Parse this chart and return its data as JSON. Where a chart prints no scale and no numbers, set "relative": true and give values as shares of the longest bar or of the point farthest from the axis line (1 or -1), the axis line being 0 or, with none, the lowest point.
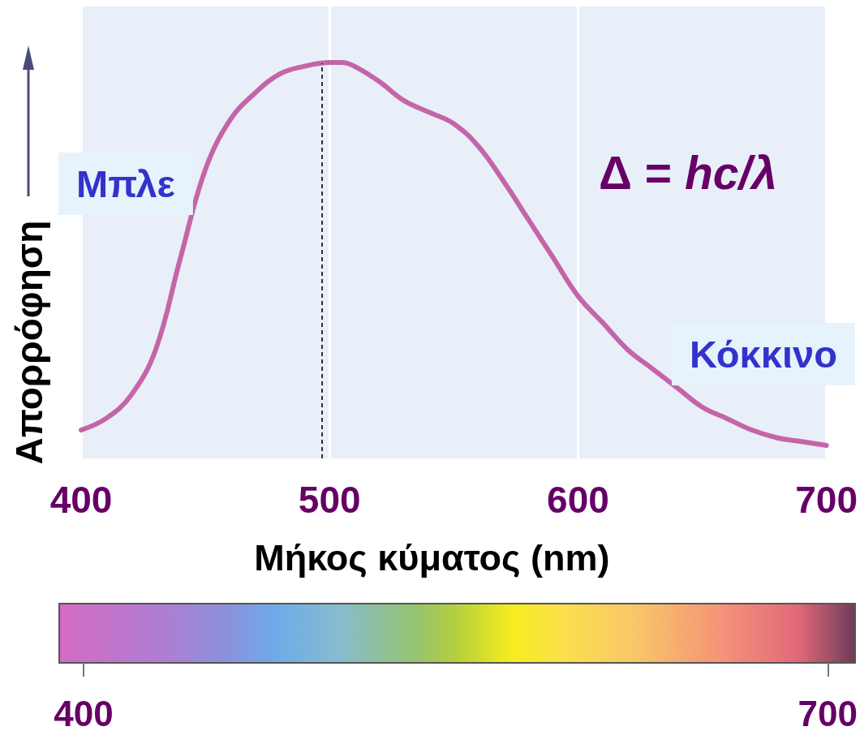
{
  "chart_data": {
    "type": "line",
    "relative": true,
    "ylabel": "Απορρόφηση",
    "xlabel": "Μήκος κύματος (nm)",
    "xlim": [
      400,
      700
    ],
    "xticks": [
      400,
      500,
      600,
      700
    ],
    "x2lim": [
      400,
      700
    ],
    "x2ticks": [
      400,
      700
    ],
    "grid": "x",
    "marker": "none",
    "line_style": "solid",
    "color": "#c465a8",
    "annotations": [
      "Μπλε",
      "Δ = hc/λ",
      "Κόκκινο"
    ],
    "ref_lines": [
      {
        "axis": "x",
        "value": 497,
        "color": "#000000",
        "line_style": "dashed"
      }
    ],
    "x": [
      400,
      410,
      420,
      430,
      440,
      450,
      460,
      470,
      480,
      490,
      500,
      505,
      510,
      520,
      530,
      540,
      550,
      560,
      570,
      580,
      590,
      600,
      610,
      620,
      630,
      640,
      650,
      660,
      670,
      680,
      690,
      700
    ],
    "values": [
      0.04,
      0.07,
      0.13,
      0.25,
      0.49,
      0.72,
      0.85,
      0.92,
      0.97,
      0.99,
      1.0,
      1.0,
      0.99,
      0.95,
      0.9,
      0.87,
      0.84,
      0.78,
      0.69,
      0.59,
      0.49,
      0.39,
      0.32,
      0.25,
      0.2,
      0.15,
      0.1,
      0.07,
      0.04,
      0.02,
      0.01,
      0.0
    ]
  }
}
